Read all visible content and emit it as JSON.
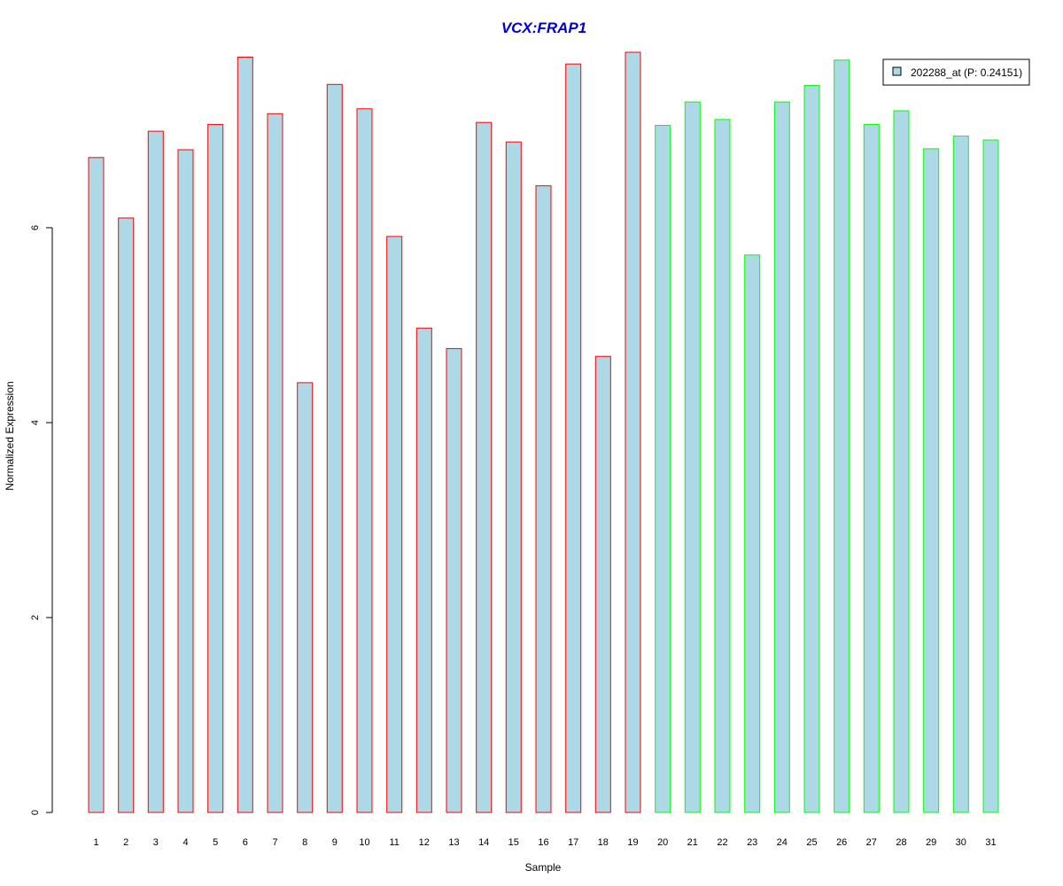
{
  "chart_data": {
    "type": "bar",
    "title": "VCX:FRAP1",
    "title_color": "#0000cc",
    "xlabel": "Sample",
    "ylabel": "Normalized Expression",
    "ylim": [
      0,
      7.8
    ],
    "yticks": [
      0,
      2,
      4,
      6
    ],
    "grid": false,
    "legend_position": "top-right",
    "categories": [
      "1",
      "2",
      "3",
      "4",
      "5",
      "6",
      "7",
      "8",
      "9",
      "10",
      "11",
      "12",
      "13",
      "14",
      "15",
      "16",
      "17",
      "18",
      "19",
      "20",
      "21",
      "22",
      "23",
      "24",
      "25",
      "26",
      "27",
      "28",
      "29",
      "30",
      "31"
    ],
    "values": [
      6.72,
      6.1,
      6.99,
      6.8,
      7.06,
      7.75,
      7.17,
      4.41,
      7.47,
      7.22,
      5.91,
      4.97,
      4.76,
      7.08,
      6.88,
      6.43,
      7.68,
      4.68,
      7.83,
      7.05,
      7.29,
      7.11,
      5.72,
      7.29,
      7.46,
      7.72,
      7.06,
      7.2,
      6.81,
      6.94,
      6.9
    ],
    "series": [
      {
        "name": "202288_at (P: 0.24151)",
        "fill": "#add8e6"
      }
    ],
    "groups": [
      {
        "samples": [
          1,
          19
        ],
        "border_color": "#ff0000"
      },
      {
        "samples": [
          20,
          31
        ],
        "border_color": "#00ff00"
      }
    ]
  }
}
